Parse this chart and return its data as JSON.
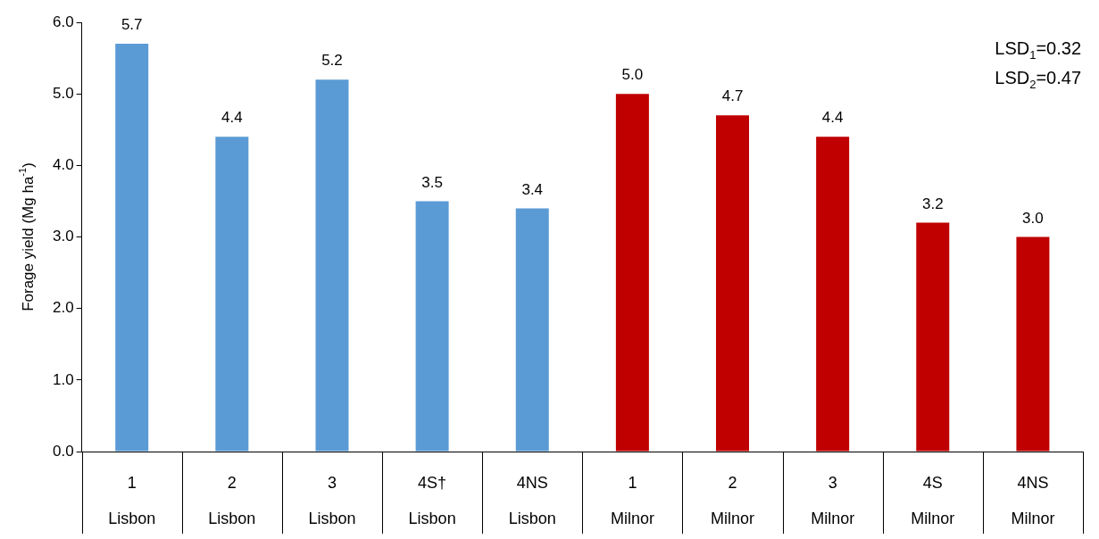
{
  "chart_data": {
    "type": "bar",
    "ylabel": "Forage yield (Mg ha$^{-1}$)",
    "categories": [
      "1\nLisbon",
      "2\nLisbon",
      "3\nLisbon",
      "4S†\nLisbon",
      "4NS\nLisbon",
      "1\nMilnor",
      "2\nMilnor",
      "3\nMilnor",
      "4S\nMilnor",
      "4NS\nMilnor"
    ],
    "values": [
      5.7,
      4.4,
      5.2,
      3.5,
      3.4,
      5.0,
      4.7,
      4.4,
      3.2,
      3.0
    ],
    "colors": [
      "#5b9bd5",
      "#5b9bd5",
      "#5b9bd5",
      "#5b9bd5",
      "#5b9bd5",
      "#c00000",
      "#c00000",
      "#c00000",
      "#c00000",
      "#c00000"
    ],
    "ylim": [
      0,
      6
    ],
    "yticks": [
      {
        "value": 0,
        "label": "0.0"
      },
      {
        "value": 1,
        "label": "1.0"
      },
      {
        "value": 2,
        "label": "2.0"
      },
      {
        "value": 3,
        "label": "3.0"
      },
      {
        "value": 4,
        "label": "4.0"
      },
      {
        "value": 5,
        "label": "5.0"
      },
      {
        "value": 6,
        "label": "6.0"
      }
    ],
    "value_labels": [
      "5.7",
      "4.4",
      "5.2",
      "3.5",
      "3.4",
      "5.0",
      "4.7",
      "4.4",
      "3.2",
      "3.0"
    ],
    "grid": false,
    "legend": false,
    "annotations": [
      "LSD$_{1}$=0.32",
      "LSD$_{2}$=0.47"
    ]
  }
}
